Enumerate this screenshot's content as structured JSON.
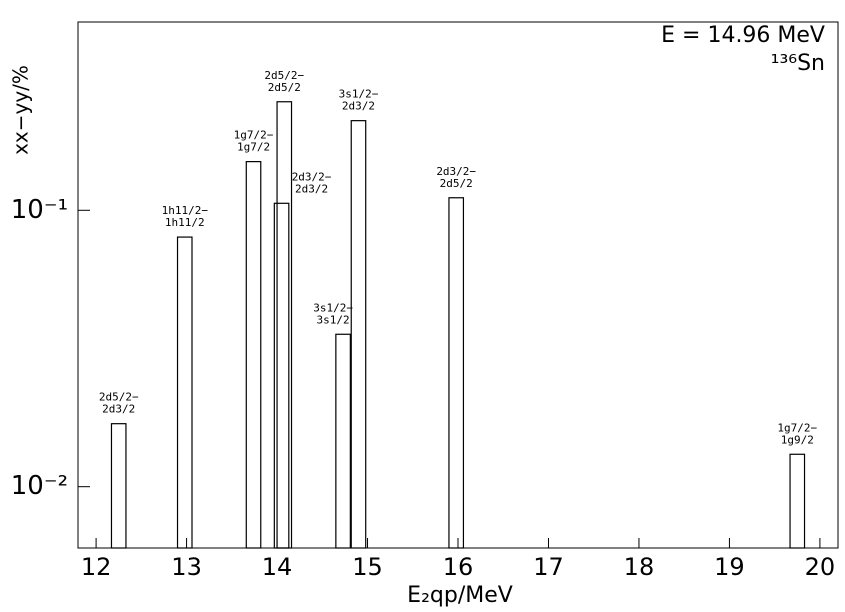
{
  "chart_data": {
    "type": "bar",
    "annotation": "E = 14.96 MeV",
    "nucleus": "¹³⁶Sn",
    "ylabel": "xx−yy/%",
    "xlabel": "E₂qp/MeV",
    "x": [
      12.25,
      12.98,
      13.74,
      14.08,
      14.05,
      14.73,
      14.9,
      15.98,
      19.75
    ],
    "values": [
      0.0169,
      0.08,
      0.15,
      0.247,
      0.106,
      0.0356,
      0.211,
      0.111,
      0.0131
    ],
    "bar_labels": [
      [
        "2d5/2−",
        "2d3/2"
      ],
      [
        "1h11/2−",
        "1h11/2"
      ],
      [
        "1g7/2−",
        "1g7/2"
      ],
      [
        "2d5/2−",
        "2d5/2"
      ],
      [
        "2d3/2−",
        "2d3/2"
      ],
      [
        "3s1/2−",
        "3s1/2"
      ],
      [
        "3s1/2−",
        "2d3/2"
      ],
      [
        "2d3/2−",
        "2d5/2"
      ],
      [
        "1g7/2−",
        "1g9/2"
      ]
    ],
    "bar_width": 0.16,
    "color": "#000000",
    "xlim": [
      11.8,
      20.2
    ],
    "xticks": [
      12,
      13,
      14,
      15,
      16,
      17,
      18,
      19,
      20
    ],
    "ylim": [
      0.006,
      0.48
    ],
    "log_y": true,
    "yticks": [
      {
        "value": 0.1,
        "label": "10⁻¹"
      },
      {
        "value": 0.01,
        "label": "10⁻²"
      }
    ]
  }
}
